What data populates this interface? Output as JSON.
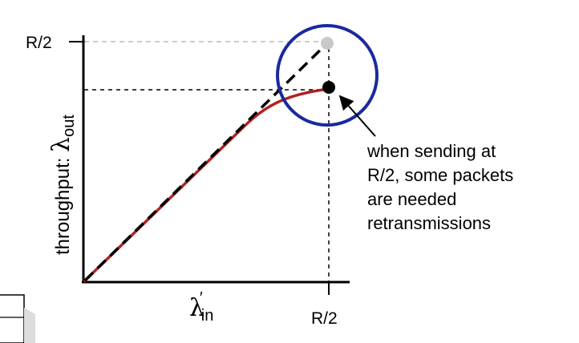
{
  "axes": {
    "y_tick_label": "R/2",
    "x_tick_label": "R/2",
    "y_title_text": "throughput: ",
    "y_title_symbol": "λ",
    "y_title_subscript": "out",
    "x_title_symbol": "λ",
    "x_title_prime": "′",
    "x_title_subscript": "in"
  },
  "annotation": {
    "lines": [
      "when sending at",
      "R/2, some packets",
      "are needed",
      "retransmissions"
    ]
  },
  "colors": {
    "curve": "#b22222",
    "ideal_line": "#000000",
    "circle": "#1a2a9c",
    "ideal_point": "#c8c8c8",
    "actual_point": "#000000",
    "guide": "#000000",
    "guide_light": "#bbbbbb",
    "page_corner": "#dddddd"
  },
  "icons": {
    "highlight": "circle-highlight-icon",
    "pointer": "arrow-icon"
  }
}
